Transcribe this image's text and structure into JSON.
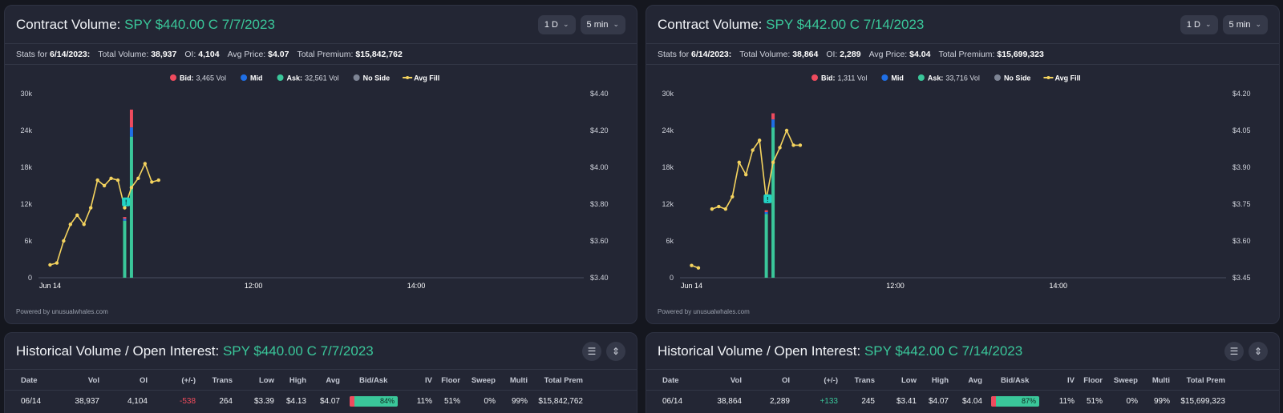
{
  "colors": {
    "bid": "#ef4b5e",
    "mid": "#1f6fe6",
    "ask": "#3ac79a",
    "no_side": "#7d8494",
    "avg_fill": "#f4d35e",
    "accent": "#3ac79a",
    "negative": "#f04b5c"
  },
  "legend": {
    "bid": "Bid:",
    "mid": "Mid",
    "ask": "Ask:",
    "no_side": "No Side",
    "avg_fill": "Avg Fill"
  },
  "left_panel": {
    "title": "Contract Volume:",
    "contract": "SPY $440.00 C 7/7/2023",
    "range_dd": "1 D",
    "interval_dd": "5 min",
    "stats": {
      "label": "Stats for",
      "date": "6/14/2023:",
      "total_volume_label": "Total Volume:",
      "total_volume": "38,937",
      "oi_label": "OI:",
      "oi": "4,104",
      "avg_price_label": "Avg Price:",
      "avg_price": "$4.07",
      "total_premium_label": "Total Premium:",
      "total_premium": "$15,842,762"
    },
    "legend_bid_vol": "3,465 Vol",
    "legend_ask_vol": "32,561 Vol",
    "powered": "Powered by unusualwhales.com"
  },
  "right_panel": {
    "title": "Contract Volume:",
    "contract": "SPY $442.00 C 7/14/2023",
    "range_dd": "1 D",
    "interval_dd": "5 min",
    "stats": {
      "label": "Stats for",
      "date": "6/14/2023:",
      "total_volume_label": "Total Volume:",
      "total_volume": "38,864",
      "oi_label": "OI:",
      "oi": "2,289",
      "avg_price_label": "Avg Price:",
      "avg_price": "$4.04",
      "total_premium_label": "Total Premium:",
      "total_premium": "$15,699,323"
    },
    "legend_bid_vol": "1,311 Vol",
    "legend_ask_vol": "33,716 Vol",
    "powered": "Powered by unusualwhales.com"
  },
  "chart_data": [
    {
      "type": "bar",
      "left_ticks": [
        "0",
        "6k",
        "12k",
        "18k",
        "24k",
        "30k"
      ],
      "right_ticks": [
        "$3.40",
        "$3.60",
        "$3.80",
        "$4.00",
        "$4.20",
        "$4.40"
      ],
      "x_ticks": [
        "Jun 14",
        "12:00",
        "14:00"
      ],
      "ylim": [
        0,
        30000
      ],
      "y2lim": [
        3.4,
        4.4
      ],
      "bars": [
        {
          "t": 55,
          "bid": 300,
          "mid": 300,
          "ask": 9300
        },
        {
          "t": 60,
          "bid": 2900,
          "mid": 1500,
          "ask": 23000
        }
      ],
      "avg_fill": [
        [
          0,
          3.47
        ],
        [
          5,
          3.48
        ],
        [
          10,
          3.6
        ],
        [
          15,
          3.69
        ],
        [
          20,
          3.74
        ],
        [
          25,
          3.69
        ],
        [
          30,
          3.78
        ],
        [
          35,
          3.93
        ],
        [
          40,
          3.9
        ],
        [
          45,
          3.94
        ],
        [
          50,
          3.93
        ],
        [
          55,
          3.78
        ],
        [
          60,
          3.89
        ],
        [
          65,
          3.94
        ],
        [
          70,
          4.02
        ],
        [
          75,
          3.92
        ],
        [
          80,
          3.93
        ]
      ],
      "annotation": "!",
      "annotation_t": 56,
      "annotation_v": 3.81
    },
    {
      "type": "bar",
      "left_ticks": [
        "0",
        "6k",
        "12k",
        "18k",
        "24k",
        "30k"
      ],
      "right_ticks": [
        "$3.45",
        "$3.60",
        "$3.75",
        "$3.90",
        "$4.05",
        "$4.20"
      ],
      "x_ticks": [
        "Jun 14",
        "12:00",
        "14:00"
      ],
      "ylim": [
        0,
        30000
      ],
      "y2lim": [
        3.45,
        4.2
      ],
      "bars": [
        {
          "t": 55,
          "bid": 300,
          "mid": 300,
          "ask": 10400
        },
        {
          "t": 60,
          "bid": 1000,
          "mid": 1300,
          "ask": 24500
        }
      ],
      "avg_fill": [
        [
          0,
          3.5
        ],
        [
          5,
          3.49
        ],
        [
          15,
          3.73
        ],
        [
          20,
          3.74
        ],
        [
          25,
          3.73
        ],
        [
          30,
          3.78
        ],
        [
          35,
          3.92
        ],
        [
          40,
          3.87
        ],
        [
          45,
          3.97
        ],
        [
          50,
          4.01
        ],
        [
          55,
          3.77
        ],
        [
          60,
          3.92
        ],
        [
          65,
          3.98
        ],
        [
          70,
          4.05
        ],
        [
          75,
          3.99
        ],
        [
          80,
          3.99
        ]
      ],
      "annotation": "!",
      "annotation_t": 56,
      "annotation_v": 3.77
    }
  ],
  "hist_left": {
    "title": "Historical Volume / Open Interest:",
    "contract": "SPY $440.00 C 7/7/2023",
    "headers": [
      "Date",
      "Vol",
      "OI",
      "(+/-)",
      "Trans",
      "Low",
      "High",
      "Avg",
      "Bid/Ask",
      "IV",
      "Floor",
      "Sweep",
      "Multi",
      "Total Prem"
    ],
    "row": {
      "date": "06/14",
      "vol": "38,937",
      "oi": "4,104",
      "chg": "-538",
      "trans": "264",
      "low": "$3.39",
      "high": "$4.13",
      "avg": "$4.07",
      "bidask_pct": "84%",
      "bid_share": 0.1,
      "iv": "11%",
      "floor": "51%",
      "sweep": "0%",
      "multi": "99%",
      "total_prem": "$15,842,762"
    }
  },
  "hist_right": {
    "title": "Historical Volume / Open Interest:",
    "contract": "SPY $442.00 C 7/14/2023",
    "headers": [
      "Date",
      "Vol",
      "OI",
      "(+/-)",
      "Trans",
      "Low",
      "High",
      "Avg",
      "Bid/Ask",
      "IV",
      "Floor",
      "Sweep",
      "Multi",
      "Total Prem"
    ],
    "row": {
      "date": "06/14",
      "vol": "38,864",
      "oi": "2,289",
      "chg": "+133",
      "trans": "245",
      "low": "$3.41",
      "high": "$4.07",
      "avg": "$4.04",
      "bidask_pct": "87%",
      "bid_share": 0.1,
      "iv": "11%",
      "floor": "51%",
      "sweep": "0%",
      "multi": "99%",
      "total_prem": "$15,699,323"
    }
  }
}
